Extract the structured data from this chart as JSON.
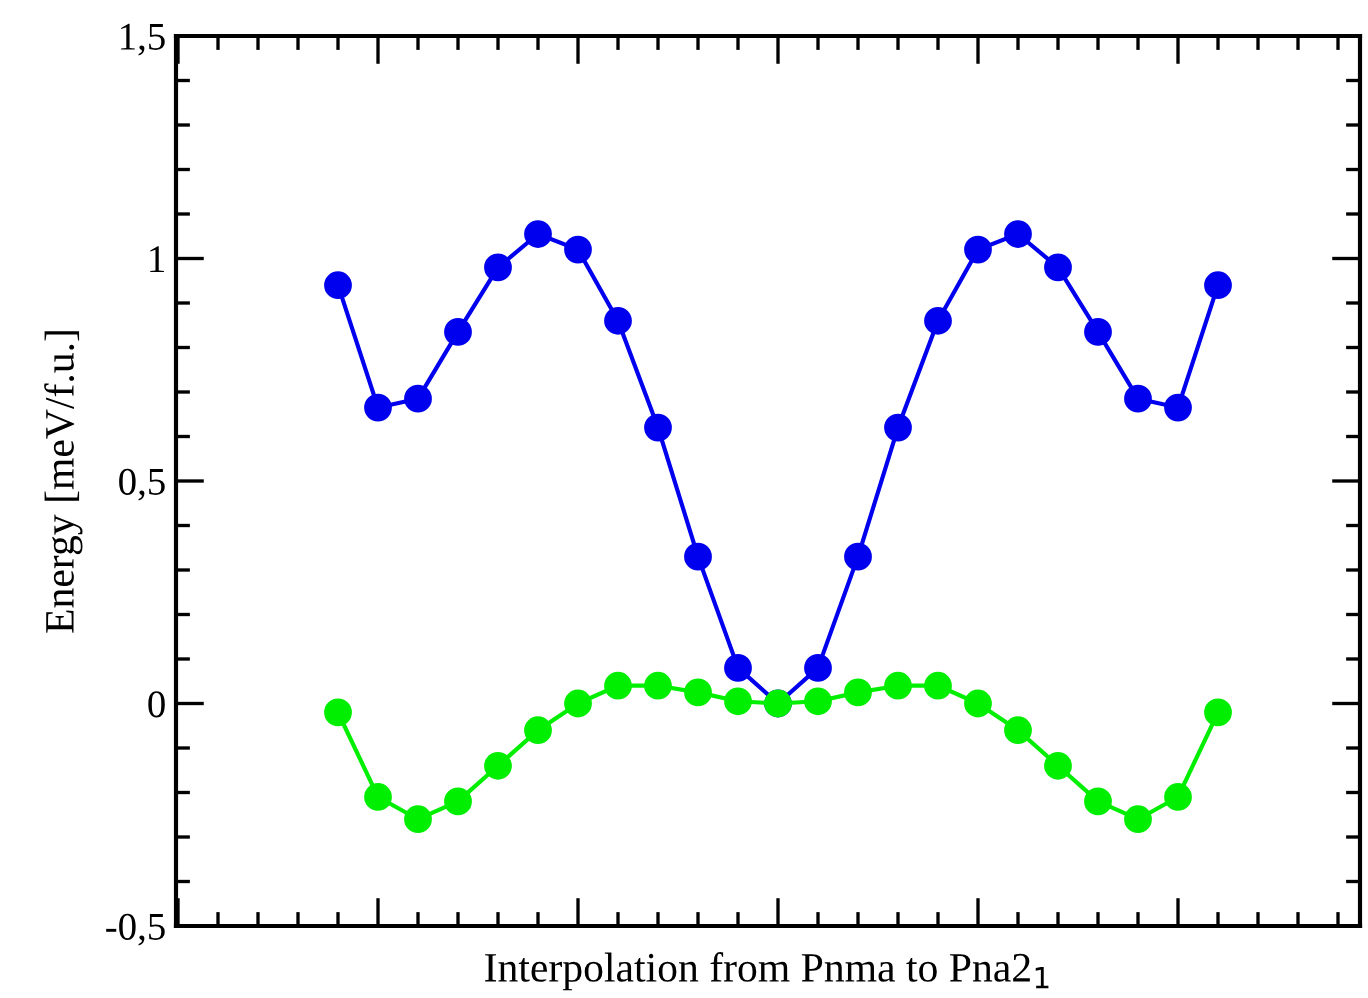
{
  "chart_data": {
    "type": "line",
    "xlabel": "Interpolation from Pnma to Pna2$_{1}$",
    "ylabel": "Energy [meV/f.u.]",
    "categories": [
      null,
      null,
      null,
      null,
      null,
      null,
      null,
      null,
      null,
      null,
      null,
      null,
      null,
      null,
      null,
      null,
      null,
      null,
      null,
      null,
      null,
      null,
      null
    ],
    "series": [
      {
        "color": "#0000ee",
        "values": [
          0.94,
          0.665,
          0.685,
          0.835,
          0.98,
          1.055,
          1.02,
          0.86,
          0.62,
          0.33,
          0.08,
          0.0,
          0.08,
          0.33,
          0.62,
          0.86,
          1.02,
          1.055,
          0.98,
          0.835,
          0.685,
          0.665,
          0.94
        ]
      },
      {
        "color": "#00ee00",
        "values": [
          -0.02,
          -0.21,
          -0.26,
          -0.22,
          -0.14,
          -0.06,
          0.0,
          0.04,
          0.04,
          0.025,
          0.005,
          0.0,
          0.005,
          0.025,
          0.04,
          0.04,
          0.0,
          -0.06,
          -0.14,
          -0.22,
          -0.26,
          -0.21,
          -0.02
        ]
      }
    ],
    "ylim": [
      -0.5,
      1.5
    ],
    "yticks": [
      {
        "value": -0.5,
        "label": "-0,5"
      },
      {
        "value": 0,
        "label": "0"
      },
      {
        "value": 0.5,
        "label": "0,5"
      },
      {
        "value": 1,
        "label": "1"
      },
      {
        "value": 1.5,
        "label": "1,5"
      }
    ],
    "marker": "circle",
    "line_style": "solid",
    "grid": false,
    "legend": false,
    "tick_labels": "y"
  }
}
